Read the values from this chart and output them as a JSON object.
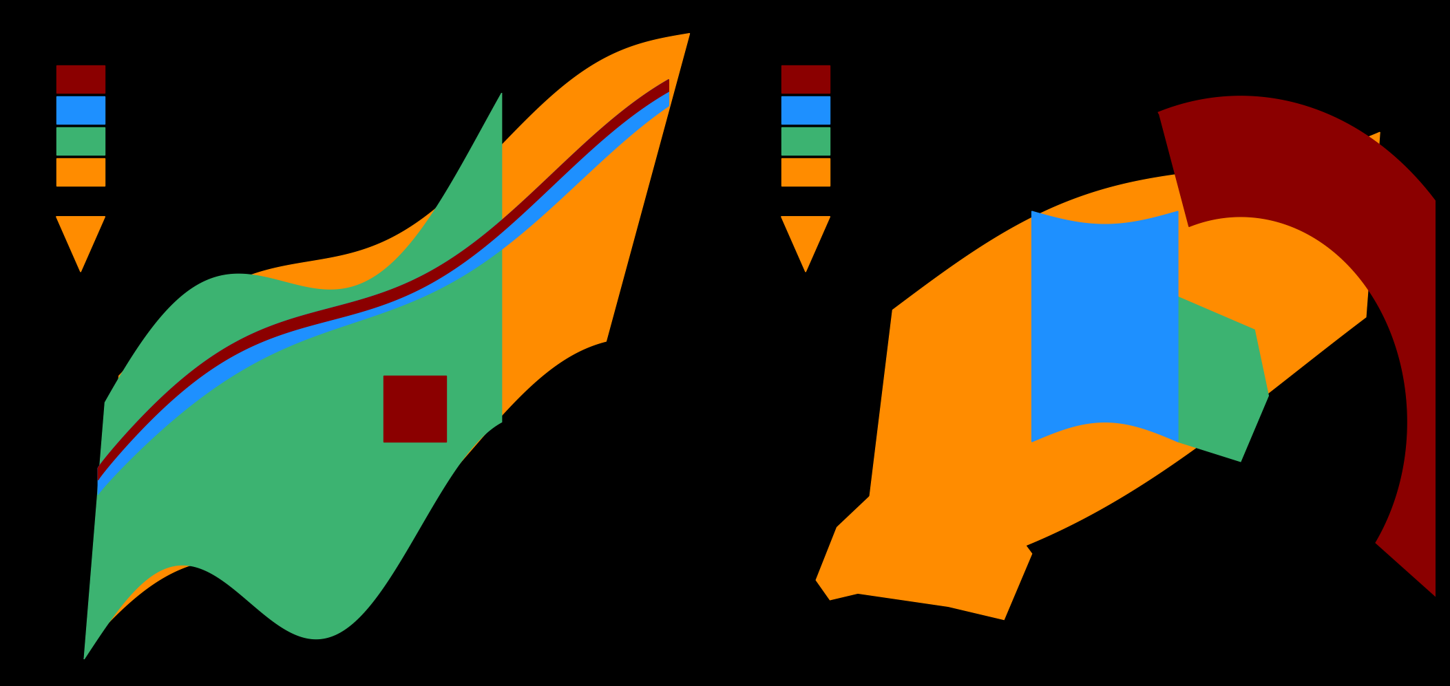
{
  "background_color": "#000000",
  "colors": {
    "orange": "#FF8C00",
    "green": "#3CB371",
    "blue": "#1E90FF",
    "darkred": "#8B0000"
  },
  "legend_colors": [
    "#8B0000",
    "#1E90FF",
    "#3CB371",
    "#FF8C00"
  ],
  "fig_width": 21.06,
  "fig_height": 9.97
}
